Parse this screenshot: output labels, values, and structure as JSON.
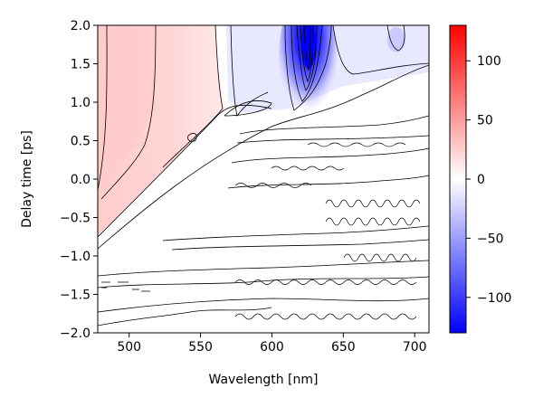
{
  "chart_data": {
    "type": "heatmap",
    "title": "",
    "xlabel": "Wavelength [nm]",
    "ylabel": "Delay time [ps]",
    "xlim": [
      478,
      710
    ],
    "ylim": [
      -2.0,
      2.0
    ],
    "x_ticks": [
      500,
      550,
      600,
      650,
      700
    ],
    "y_ticks": [
      -2.0,
      -1.5,
      -1.0,
      -0.5,
      0.0,
      0.5,
      1.0,
      1.5,
      2.0
    ],
    "x_tick_labels": [
      "500",
      "550",
      "600",
      "650",
      "700"
    ],
    "y_tick_labels": [
      "−2.0",
      "−1.5",
      "−1.0",
      "−0.5",
      "0.0",
      "0.5",
      "1.0",
      "1.5",
      "2.0"
    ],
    "colormap": "bwr",
    "color_range": [
      -130,
      130
    ],
    "colorbar_ticks": [
      100,
      50,
      0,
      -50,
      -100
    ],
    "colorbar_tick_labels": [
      "100",
      "50",
      "0",
      "−50",
      "−100"
    ],
    "contour_lines": true,
    "grid": false,
    "features": [
      {
        "wavelength": [
          480,
          560
        ],
        "delay": [
          -0.9,
          2.0
        ],
        "value": 20
      },
      {
        "wavelength": [
          612,
          640
        ],
        "delay": [
          1.0,
          2.0
        ],
        "value": -130
      },
      {
        "wavelength": [
          688,
          700
        ],
        "delay": [
          1.6,
          2.0
        ],
        "value": -30
      },
      {
        "wavelength": [
          560,
          600
        ],
        "delay": [
          1.0,
          2.0
        ],
        "value": -15
      }
    ]
  }
}
